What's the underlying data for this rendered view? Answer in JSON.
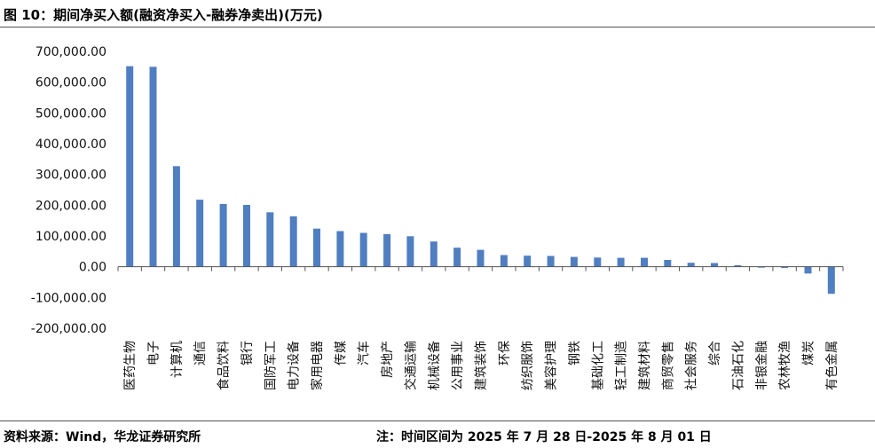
{
  "figure": {
    "title": "图 10：期间净买入额(融资净买入-融券净卖出)(万元)",
    "source": "资料来源：Wind，华龙证券研究所",
    "note": "注：时间区间为 2025 年 7 月 28 日-2025 年 8 月 01 日"
  },
  "colors": {
    "bar": "#4F7FC1",
    "axis": "#555555",
    "text": "#111111"
  },
  "chart_data": {
    "type": "bar",
    "title": "期间净买入额(融资净买入-融券净卖出)(万元)",
    "xlabel": "",
    "ylabel": "",
    "grid": false,
    "legend": "none",
    "ylim": [
      -200000,
      700000
    ],
    "yticks": [
      700000,
      600000,
      500000,
      400000,
      300000,
      200000,
      100000,
      0,
      -100000,
      -200000
    ],
    "ytick_labels": [
      "700,000.00",
      "600,000.00",
      "500,000.00",
      "400,000.00",
      "300,000.00",
      "200,000.00",
      "100,000.00",
      "0.00",
      "-100,000.00",
      "-200,000.00"
    ],
    "categories": [
      "医药生物",
      "电子",
      "计算机",
      "通信",
      "食品饮料",
      "银行",
      "国防军工",
      "电力设备",
      "家用电器",
      "传媒",
      "汽车",
      "房地产",
      "交通运输",
      "机械设备",
      "公用事业",
      "建筑装饰",
      "环保",
      "纺织服饰",
      "美容护理",
      "钢铁",
      "基础化工",
      "轻工制造",
      "建筑材料",
      "商贸零售",
      "社会服务",
      "综合",
      "石油石化",
      "非银金融",
      "农林牧渔",
      "煤炭",
      "有色金属"
    ],
    "values": [
      652000,
      650000,
      327000,
      218000,
      204000,
      201000,
      177000,
      164000,
      124000,
      116000,
      110000,
      106000,
      99000,
      82000,
      62000,
      55000,
      38000,
      36000,
      35000,
      32000,
      30000,
      29000,
      29000,
      22000,
      13000,
      12000,
      5000,
      -2000,
      -4000,
      -22000,
      -88000
    ]
  }
}
